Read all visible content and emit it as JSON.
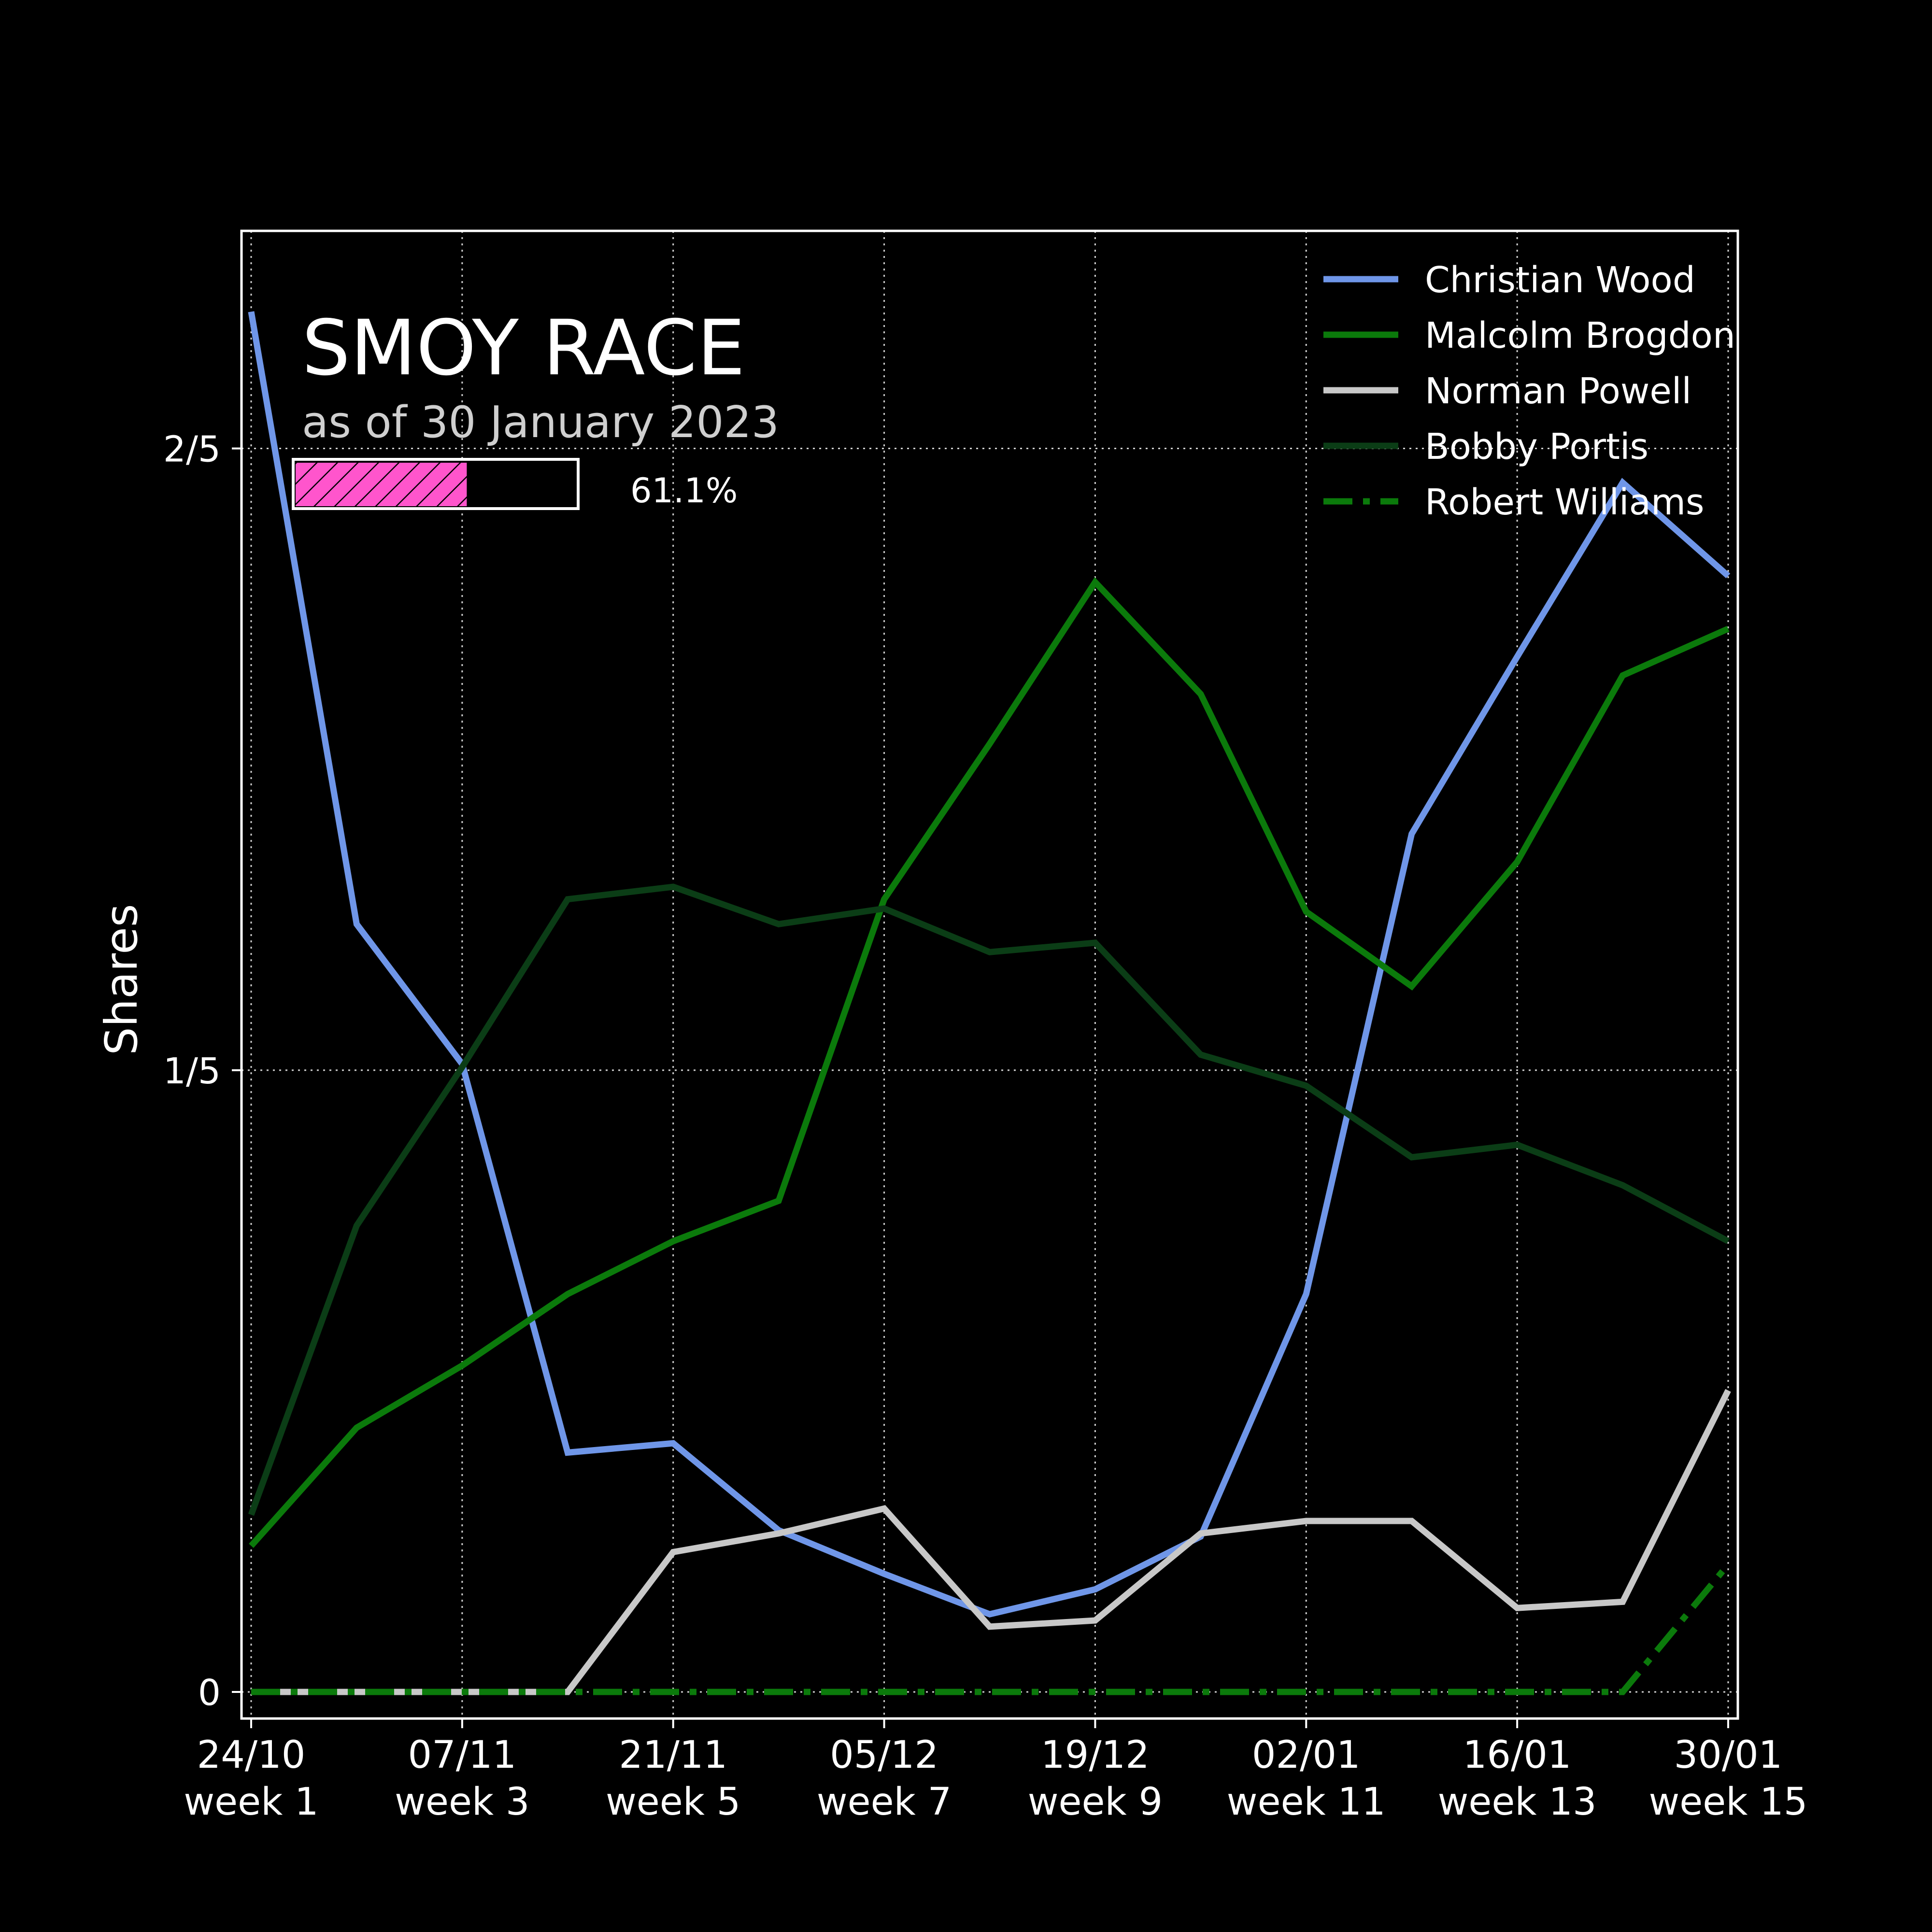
{
  "chart_data": {
    "type": "line",
    "title": "SMOY RACE",
    "subtitle": "as of 30 January 2023",
    "progress": {
      "value": 0.611,
      "label": "61.1%",
      "fill_color": "#ff55cc"
    },
    "ylabel": "Shares",
    "xlabel": "",
    "ylim": [
      0,
      0.47
    ],
    "yticks": [
      {
        "value": 0,
        "label": "0"
      },
      {
        "value": 0.2,
        "label": "1/5"
      },
      {
        "value": 0.4,
        "label": "2/5"
      }
    ],
    "xlim": [
      1,
      15
    ],
    "xticks": [
      {
        "week": 1,
        "date": "24/10",
        "label": "week 1"
      },
      {
        "week": 3,
        "date": "07/11",
        "label": "week 3"
      },
      {
        "week": 5,
        "date": "21/11",
        "label": "week 5"
      },
      {
        "week": 7,
        "date": "05/12",
        "label": "week 7"
      },
      {
        "week": 9,
        "date": "19/12",
        "label": "week 9"
      },
      {
        "week": 11,
        "date": "02/01",
        "label": "week 11"
      },
      {
        "week": 13,
        "date": "16/01",
        "label": "week 13"
      },
      {
        "week": 15,
        "date": "30/01",
        "label": "week 15"
      }
    ],
    "x": [
      1,
      2,
      3,
      4,
      5,
      6,
      7,
      8,
      9,
      10,
      11,
      12,
      13,
      14,
      15
    ],
    "grid": true,
    "legend_position": "top-right",
    "series": [
      {
        "name": "Christian Wood",
        "color": "#6f96e8",
        "style": "solid",
        "values": [
          0.444,
          0.247,
          0.202,
          0.077,
          0.08,
          0.052,
          0.038,
          0.025,
          0.033,
          0.05,
          0.128,
          0.276,
          0.333,
          0.389,
          0.359
        ]
      },
      {
        "name": "Malcolm Brogdon",
        "color": "#0b7a0b",
        "style": "solid",
        "values": [
          0.047,
          0.085,
          0.105,
          0.128,
          0.145,
          0.158,
          0.255,
          0.305,
          0.357,
          0.321,
          0.251,
          0.227,
          0.267,
          0.327,
          0.342
        ]
      },
      {
        "name": "Norman Powell",
        "color": "#c8c8c8",
        "style": "solid",
        "values": [
          0.0,
          0.0,
          0.0,
          0.0,
          0.045,
          0.051,
          0.059,
          0.021,
          0.023,
          0.051,
          0.055,
          0.055,
          0.027,
          0.029,
          0.097
        ]
      },
      {
        "name": "Bobby Portis",
        "color": "#0b3d16",
        "style": "solid",
        "values": [
          0.057,
          0.15,
          0.201,
          0.255,
          0.259,
          0.247,
          0.252,
          0.238,
          0.241,
          0.205,
          0.195,
          0.172,
          0.176,
          0.163,
          0.145
        ]
      },
      {
        "name": "Robert Williams",
        "color": "#0b7a0b",
        "style": "dashdot",
        "values": [
          0,
          0,
          0,
          0,
          0,
          0,
          0,
          0,
          0,
          0,
          0,
          0,
          0,
          0,
          0.041
        ]
      }
    ]
  }
}
